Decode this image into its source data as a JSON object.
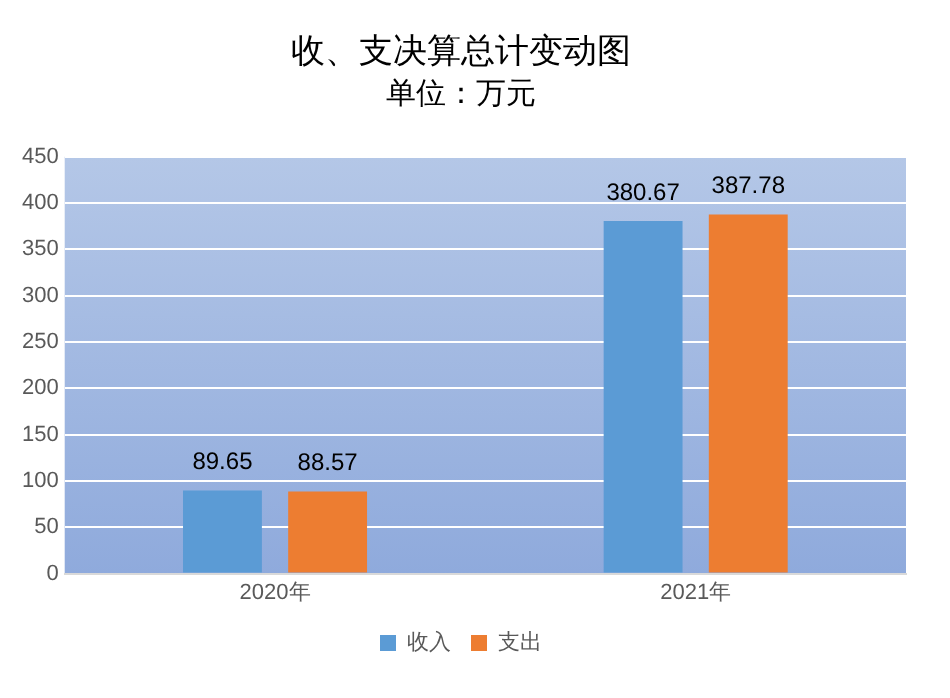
{
  "chart_data": {
    "type": "bar",
    "title": "收、支决算总计变动图",
    "subtitle": "单位：万元",
    "categories": [
      "2020年",
      "2021年"
    ],
    "series": [
      {
        "name": "收入",
        "color": "#5b9bd5",
        "values": [
          89.65,
          380.67
        ]
      },
      {
        "name": "支出",
        "color": "#ed7d31",
        "values": [
          88.57,
          387.78
        ]
      }
    ],
    "ylim": [
      0,
      450
    ],
    "yticks": [
      0,
      50,
      100,
      150,
      200,
      250,
      300,
      350,
      400,
      450
    ],
    "grid": "y",
    "legend": "bottom",
    "data_labels": true
  }
}
